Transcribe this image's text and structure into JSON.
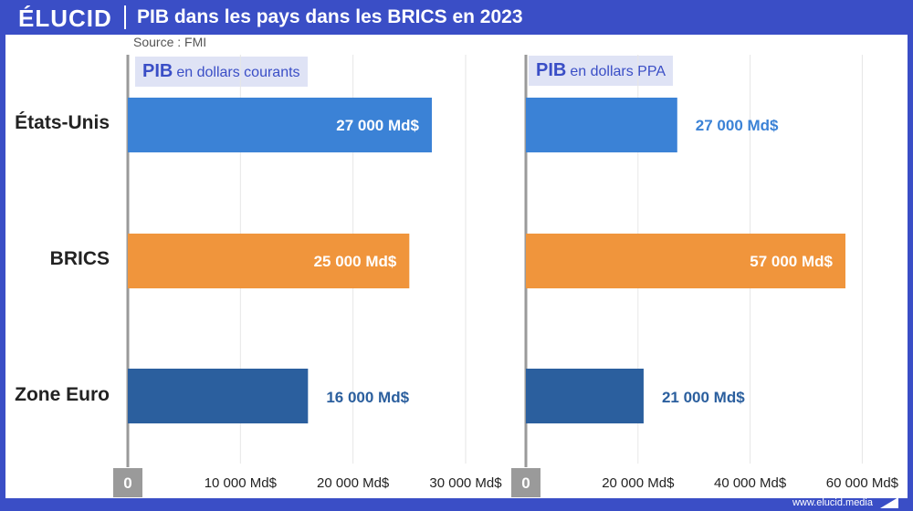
{
  "header": {
    "logo": "ÉLUCID",
    "title": "PIB dans les pays dans les BRICS en 2023",
    "source": "Source : FMI"
  },
  "footer": {
    "url": "www.elucid.media"
  },
  "colors": {
    "brand": "#3a4ec6",
    "usa": "#3b82d6",
    "brics": "#f0953c",
    "euro": "#2b5f9e",
    "grid": "#e6e6e6",
    "axis": "#9a9a9a"
  },
  "chart_data": [
    {
      "type": "bar",
      "orientation": "horizontal",
      "subtitle_bold": "PIB",
      "subtitle_rest": "en dollars courants",
      "categories": [
        "États-Unis",
        "BRICS",
        "Zone Euro"
      ],
      "values": [
        27000,
        25000,
        16000
      ],
      "value_labels": [
        "27 000 Md$",
        "25 000 Md$",
        "16 000 Md$"
      ],
      "xlim": [
        0,
        30000
      ],
      "ticks": [
        0,
        10000,
        20000,
        30000
      ],
      "tick_labels": [
        "0",
        "10 000 Md$",
        "20 000 Md$",
        "30 000 Md$"
      ],
      "grid": true
    },
    {
      "type": "bar",
      "orientation": "horizontal",
      "subtitle_bold": "PIB",
      "subtitle_rest": "en dollars PPA",
      "categories": [
        "États-Unis",
        "BRICS",
        "Zone Euro"
      ],
      "values": [
        27000,
        57000,
        21000
      ],
      "value_labels": [
        "27 000 Md$",
        "57 000 Md$",
        "21 000 Md$"
      ],
      "xlim": [
        0,
        60000
      ],
      "ticks": [
        0,
        20000,
        40000,
        60000
      ],
      "tick_labels": [
        "0",
        "20 000 Md$",
        "40 000 Md$",
        "60 000 Md$"
      ],
      "grid": true
    }
  ]
}
